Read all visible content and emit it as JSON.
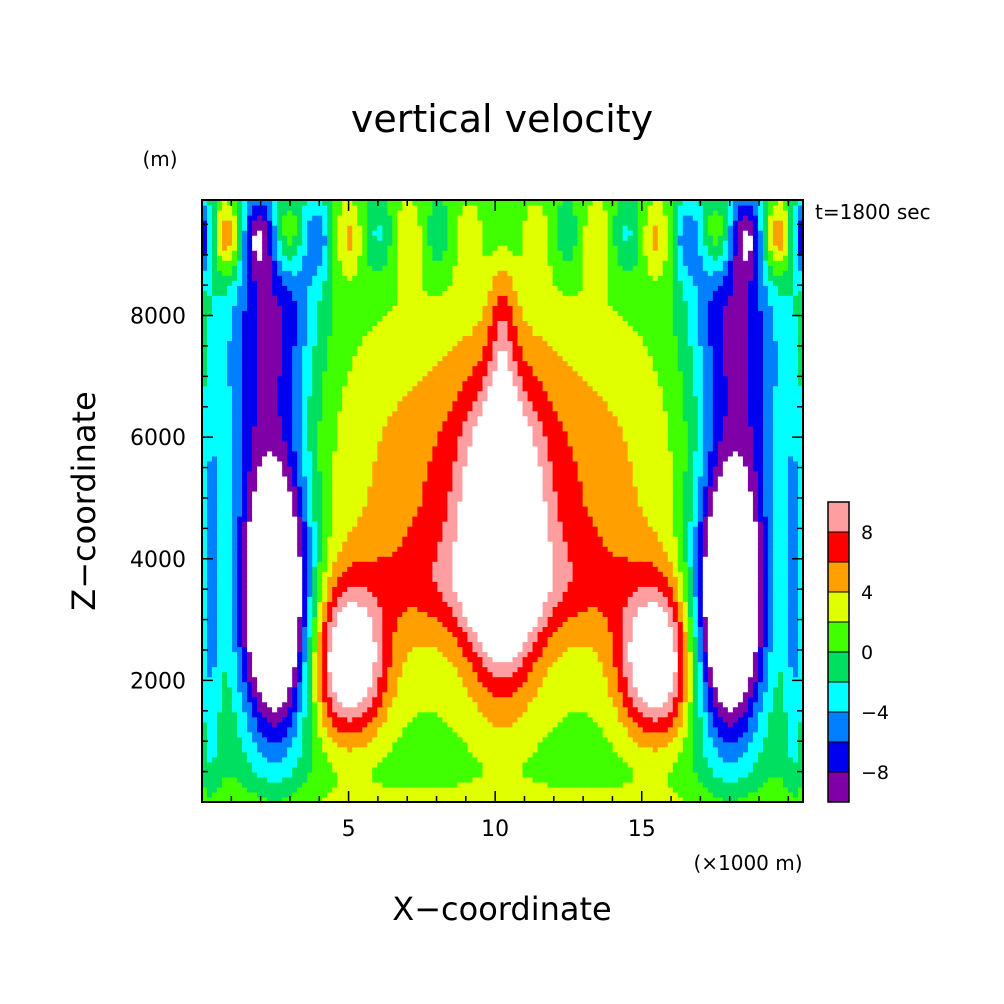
{
  "chart_data": {
    "type": "heatmap",
    "title": "vertical velocity",
    "xlabel": "X−coordinate",
    "ylabel": "Z−coordinate",
    "x_unit": "(×1000 m)",
    "y_unit": "(m)",
    "time_label": "t=1800 sec",
    "xlim": [
      0,
      20.5
    ],
    "ylim": [
      0,
      9900
    ],
    "x_ticks": [
      5,
      10,
      15
    ],
    "x_tick_labels": [
      "5",
      "10",
      "15"
    ],
    "y_ticks": [
      2000,
      4000,
      6000,
      8000
    ],
    "y_tick_labels": [
      "2000",
      "4000",
      "6000",
      "8000"
    ],
    "colorbar": {
      "levels": [
        -10,
        -8,
        -6,
        -4,
        -2,
        0,
        2,
        4,
        6,
        8,
        10
      ],
      "tick_values": [
        -8,
        -4,
        0,
        4,
        8
      ],
      "tick_labels": [
        "−8",
        "−4",
        "0",
        "4",
        "8"
      ],
      "colors": [
        "#8000a8",
        "#0000f0",
        "#0080ff",
        "#00ffff",
        "#00e060",
        "#40ff00",
        "#e0ff00",
        "#ffa000",
        "#ff0000",
        "#ff9ea0"
      ],
      "out_of_range_color": "#ffffff"
    },
    "field": {
      "description": "vertical velocity contours, symmetric about x=10.25 km",
      "updraft_core": {
        "x": 10.25,
        "z": 4300,
        "w_max": 11
      },
      "secondary_updrafts": [
        {
          "x": 5,
          "z": 2300,
          "w_max": 11
        },
        {
          "x": 15.5,
          "z": 2300,
          "w_max": 11
        }
      ],
      "downdraft_columns": [
        {
          "x": 2.5,
          "z": 3300,
          "w_min": -11
        },
        {
          "x": 18.0,
          "z": 3300,
          "w_min": -11
        }
      ],
      "upper_oscillations": {
        "z": 9300,
        "amplitude": 8
      }
    }
  }
}
